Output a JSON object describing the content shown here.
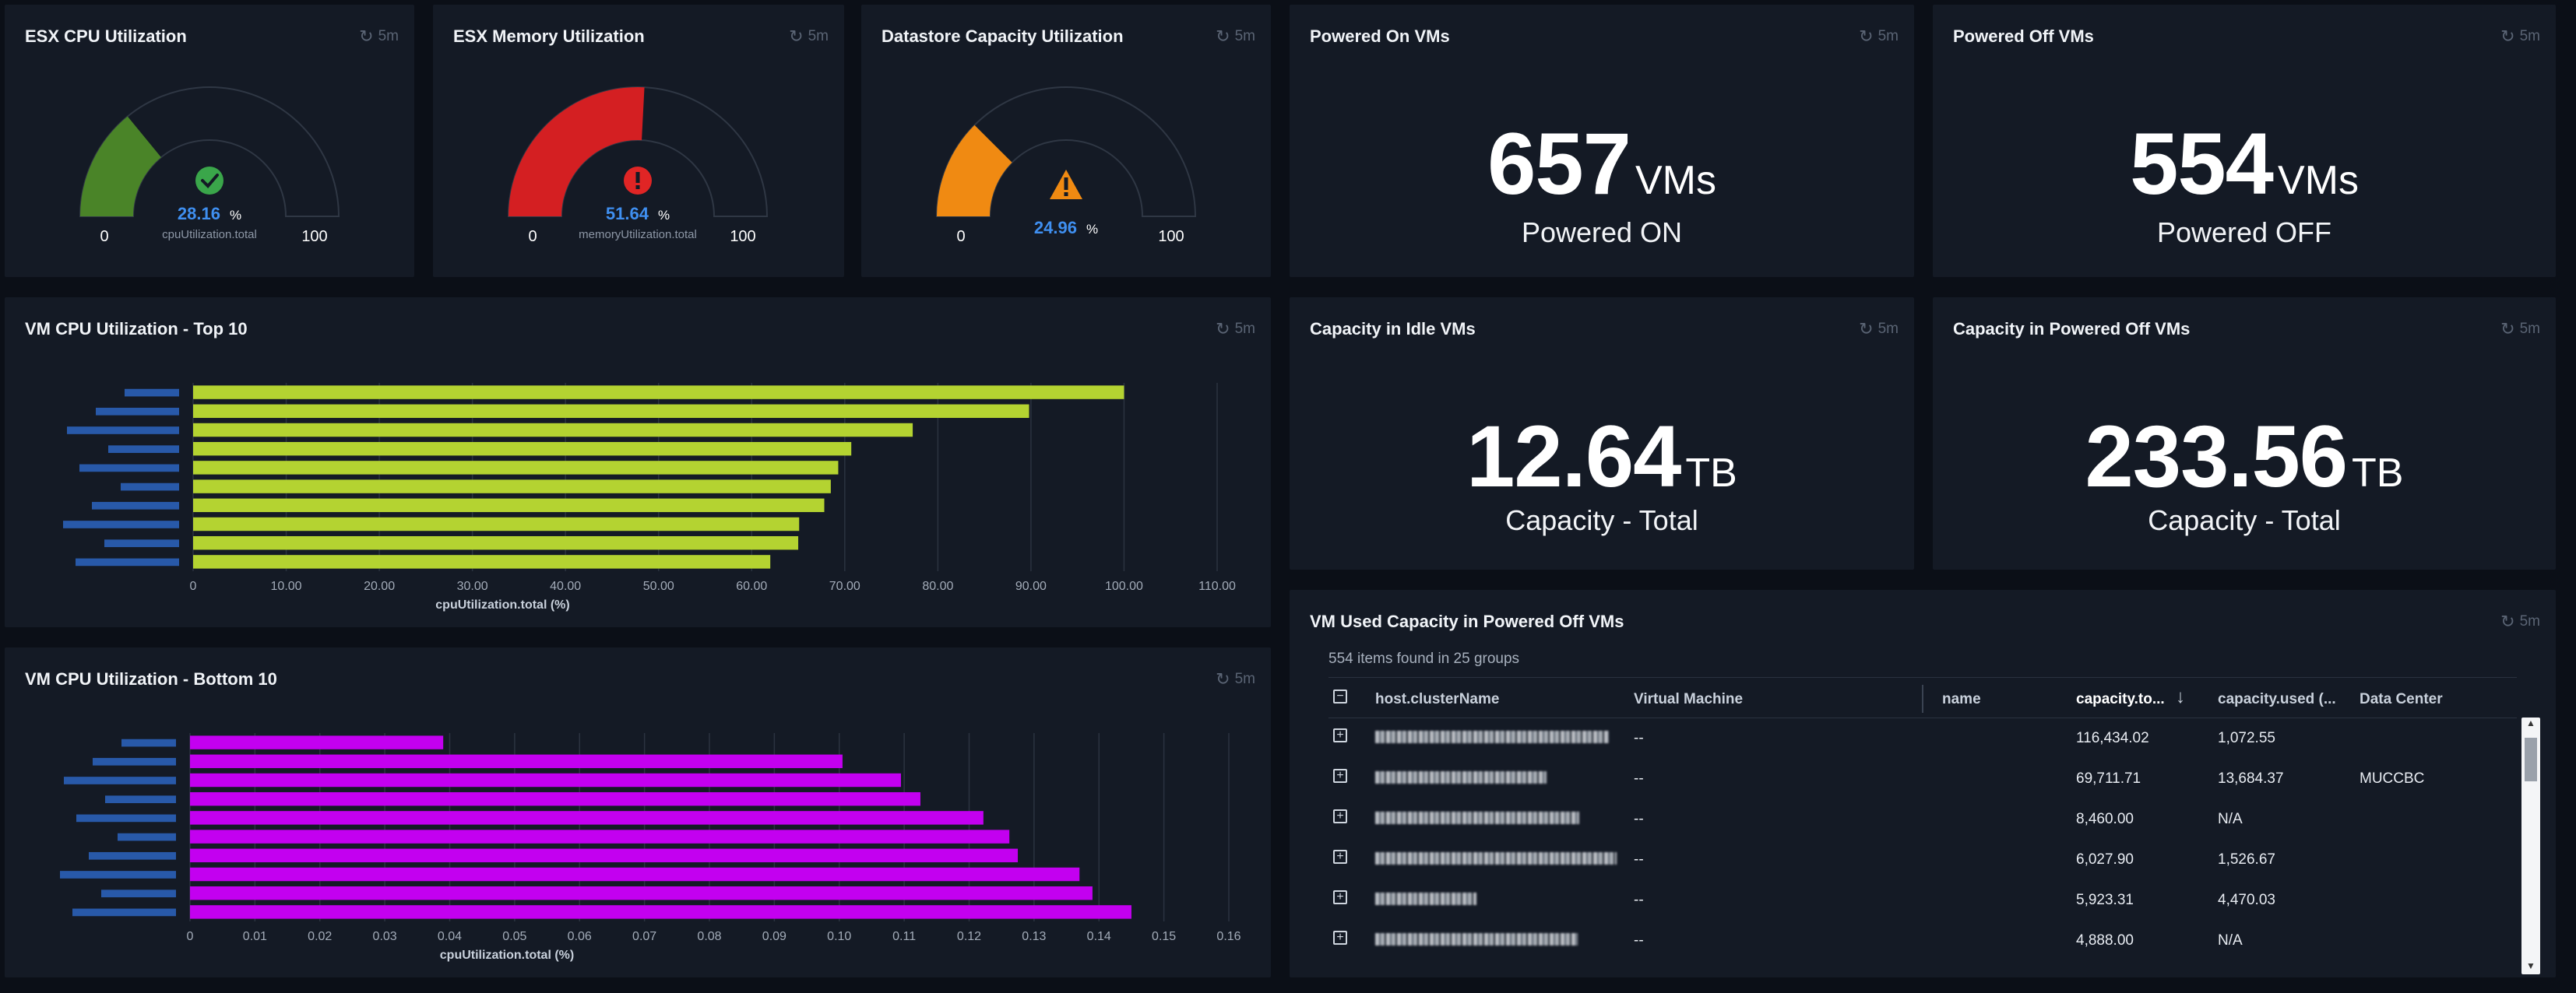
{
  "panels": {
    "cpu_gauge": {
      "title": "ESX CPU Utilization",
      "refresh": "5m",
      "value": "28.16",
      "unit": "%",
      "metric": "cpuUtilization.total",
      "min": "0",
      "max": "100",
      "fraction": 0.2816,
      "color": "#4a8428",
      "status_icon": "check-circle-icon",
      "status_color": "#3aa64a"
    },
    "mem_gauge": {
      "title": "ESX Memory Utilization",
      "refresh": "5m",
      "value": "51.64",
      "unit": "%",
      "metric": "memoryUtilization.total",
      "min": "0",
      "max": "100",
      "fraction": 0.5164,
      "color": "#d41f22",
      "status_icon": "error-circle-icon",
      "status_color": "#e02525"
    },
    "ds_gauge": {
      "title": "Datastore Capacity Utilization",
      "refresh": "5m",
      "value": "24.96",
      "unit": "%",
      "metric": "",
      "min": "0",
      "max": "100",
      "fraction": 0.2496,
      "color": "#f08a12",
      "status_icon": "warning-triangle-icon",
      "status_color": "#f08a12"
    },
    "powered_on": {
      "title": "Powered On VMs",
      "refresh": "5m",
      "value": "657",
      "unit": "VMs",
      "label": "Powered ON"
    },
    "powered_off": {
      "title": "Powered Off VMs",
      "refresh": "5m",
      "value": "554",
      "unit": "VMs",
      "label": "Powered OFF"
    },
    "idle_capacity": {
      "title": "Capacity in Idle VMs",
      "refresh": "5m",
      "value": "12.64",
      "unit": "TB",
      "label": "Capacity - Total"
    },
    "off_capacity": {
      "title": "Capacity in Powered Off VMs",
      "refresh": "5m",
      "value": "233.56",
      "unit": "TB",
      "label": "Capacity - Total"
    },
    "top10": {
      "title": "VM CPU Utilization - Top 10",
      "refresh": "5m"
    },
    "bottom10": {
      "title": "VM CPU Utilization - Bottom 10",
      "refresh": "5m"
    },
    "table": {
      "title": "VM Used Capacity in Powered Off VMs",
      "refresh": "5m",
      "summary": "554 items found in 25 groups",
      "columns": [
        "host.clusterName",
        "Virtual Machine",
        "name",
        "capacity.to...",
        "capacity.used (...",
        "Data Center"
      ],
      "sort_icon": "arrow-down-icon",
      "rows": [
        {
          "vm": "--",
          "total": "116,434.02",
          "used": "1,072.55",
          "dc": ""
        },
        {
          "vm": "--",
          "total": "69,711.71",
          "used": "13,684.37",
          "dc": "MUCCBC"
        },
        {
          "vm": "--",
          "total": "8,460.00",
          "used": "N/A",
          "dc": ""
        },
        {
          "vm": "--",
          "total": "6,027.90",
          "used": "1,526.67",
          "dc": ""
        },
        {
          "vm": "--",
          "total": "5,923.31",
          "used": "4,470.03",
          "dc": ""
        },
        {
          "vm": "--",
          "total": "4,888.00",
          "used": "N/A",
          "dc": ""
        }
      ]
    }
  },
  "chart_data": [
    {
      "type": "bar",
      "orientation": "horizontal",
      "title": "VM CPU Utilization - Top 10",
      "xlabel": "cpuUtilization.total (%)",
      "xlim": [
        0,
        110
      ],
      "xticks": [
        "0",
        "10.00",
        "20.00",
        "30.00",
        "40.00",
        "50.00",
        "60.00",
        "70.00",
        "80.00",
        "90.00",
        "100.00",
        "110.00"
      ],
      "bar_color": "#b4d331",
      "values": [
        100.0,
        89.8,
        77.3,
        70.7,
        69.3,
        68.5,
        67.8,
        65.1,
        65.0,
        62.0
      ]
    },
    {
      "type": "bar",
      "orientation": "horizontal",
      "title": "VM CPU Utilization - Bottom 10",
      "xlabel": "cpuUtilization.total (%)",
      "xlim": [
        0,
        0.16
      ],
      "xticks": [
        "0",
        "0.01",
        "0.02",
        "0.03",
        "0.04",
        "0.05",
        "0.06",
        "0.07",
        "0.08",
        "0.09",
        "0.10",
        "0.11",
        "0.12",
        "0.13",
        "0.14",
        "0.15",
        "0.16"
      ],
      "bar_color": "#c300f0",
      "values": [
        0.039,
        0.1005,
        0.1095,
        0.1125,
        0.1222,
        0.1262,
        0.1275,
        0.137,
        0.139,
        0.145
      ]
    }
  ]
}
